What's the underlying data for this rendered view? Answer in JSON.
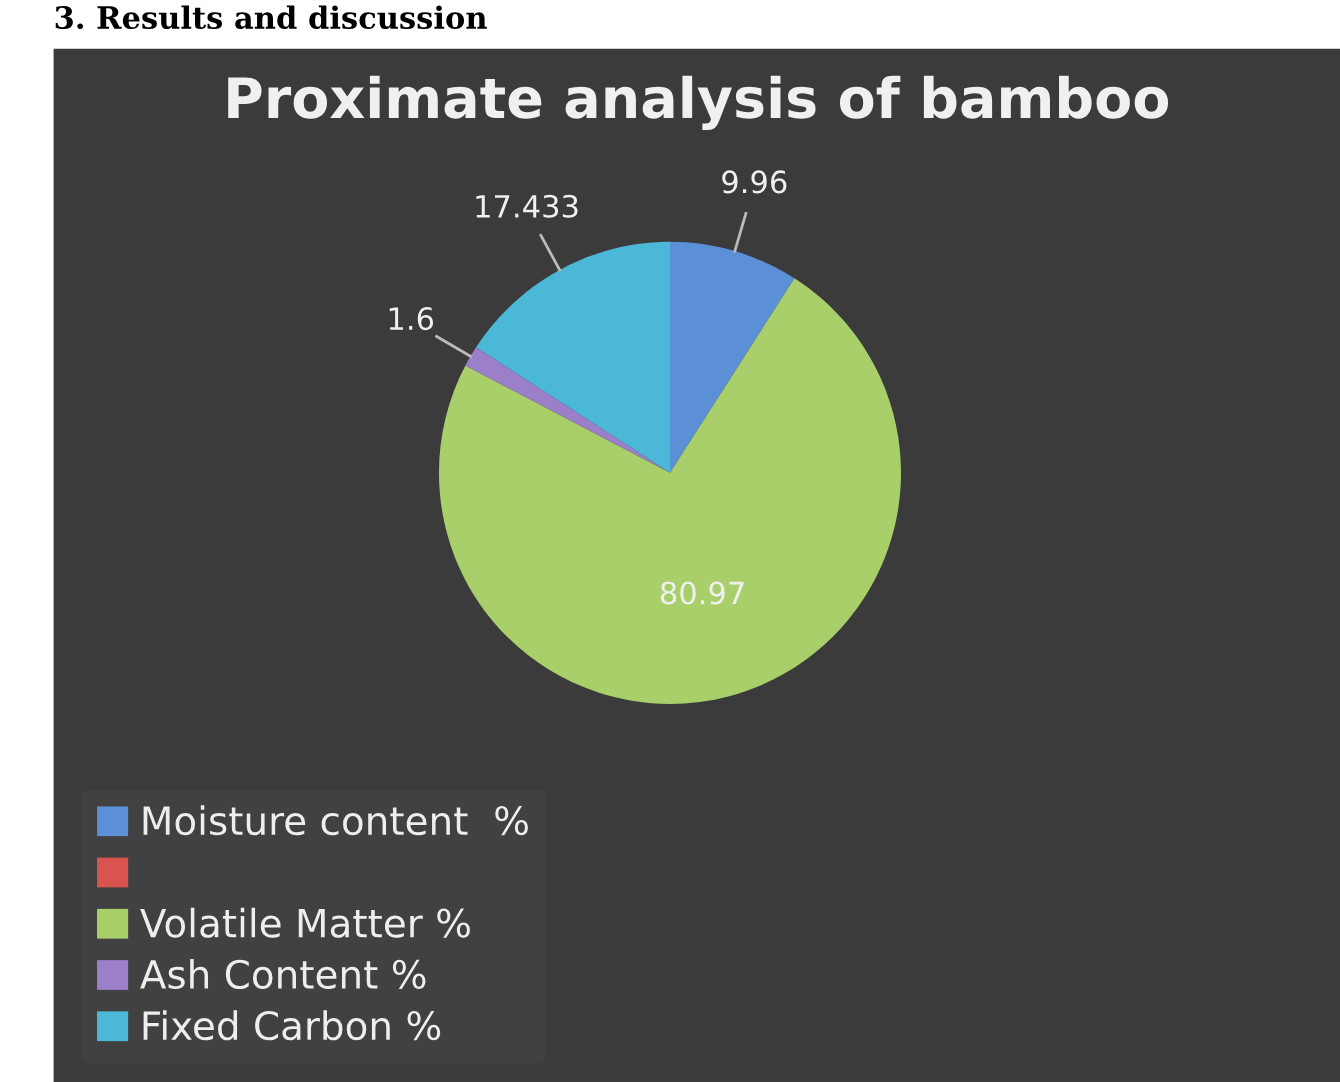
{
  "chart_data": {
    "type": "pie",
    "title": "Proximate analysis of bamboo",
    "annotations": [
      "3. Results and discussion"
    ],
    "categories": [
      "Moisture content  %",
      null,
      "Volatile Matter %",
      "Ash Content %",
      "Fixed Carbon %"
    ],
    "values": [
      9.96,
      null,
      80.97,
      1.6,
      17.433
    ],
    "colors": [
      "#5b8fd6",
      "#d9534f",
      "#a9cf6b",
      "#9b7fc9",
      "#4bb8d8"
    ],
    "data_labels": true,
    "legend": "bottom left"
  }
}
